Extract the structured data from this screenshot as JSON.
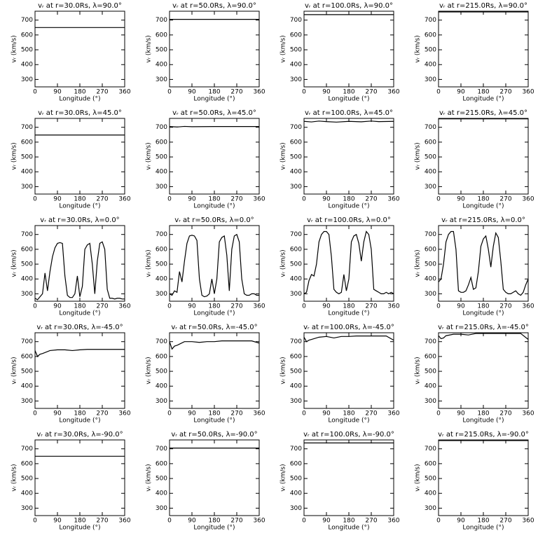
{
  "chart_data": [
    {
      "type": "line",
      "title": "vᵣ at r=30.0Rs, λ=90.0°",
      "x_label": "Longitude (°)",
      "y_label": "vᵣ (km/s)",
      "x": [
        0,
        360
      ],
      "values": [
        650,
        650
      ],
      "xlim": [
        0,
        360
      ],
      "ylim": [
        250,
        760
      ],
      "xticks": [
        0,
        90,
        180,
        270,
        360
      ],
      "yticks": [
        300,
        400,
        500,
        600,
        700
      ],
      "color": "#000000"
    },
    {
      "type": "line",
      "title": "vᵣ at r=50.0Rs, λ=90.0°",
      "x_label": "Longitude (°)",
      "y_label": "vᵣ (km/s)",
      "x": [
        0,
        360
      ],
      "values": [
        705,
        705
      ],
      "xlim": [
        0,
        360
      ],
      "ylim": [
        250,
        760
      ],
      "xticks": [
        0,
        90,
        180,
        270,
        360
      ],
      "yticks": [
        300,
        400,
        500,
        600,
        700
      ],
      "color": "#000000"
    },
    {
      "type": "line",
      "title": "vᵣ at r=100.0Rs, λ=90.0°",
      "x_label": "Longitude (°)",
      "y_label": "vᵣ (km/s)",
      "x": [
        0,
        360
      ],
      "values": [
        737,
        737
      ],
      "xlim": [
        0,
        360
      ],
      "ylim": [
        250,
        760
      ],
      "xticks": [
        0,
        90,
        180,
        270,
        360
      ],
      "yticks": [
        300,
        400,
        500,
        600,
        700
      ],
      "color": "#000000"
    },
    {
      "type": "line",
      "title": "vᵣ at r=215.0Rs, λ=90.0°",
      "x_label": "Longitude (°)",
      "y_label": "vᵣ (km/s)",
      "x": [
        0,
        360
      ],
      "values": [
        755,
        755
      ],
      "xlim": [
        0,
        360
      ],
      "ylim": [
        250,
        760
      ],
      "xticks": [
        0,
        90,
        180,
        270,
        360
      ],
      "yticks": [
        300,
        400,
        500,
        600,
        700
      ],
      "color": "#000000"
    },
    {
      "type": "line",
      "title": "vᵣ at r=30.0Rs, λ=45.0°",
      "x_label": "Longitude (°)",
      "y_label": "vᵣ (km/s)",
      "x": [
        0,
        360
      ],
      "values": [
        648,
        648
      ],
      "xlim": [
        0,
        360
      ],
      "ylim": [
        250,
        760
      ],
      "xticks": [
        0,
        90,
        180,
        270,
        360
      ],
      "yticks": [
        300,
        400,
        500,
        600,
        700
      ],
      "color": "#000000"
    },
    {
      "type": "line",
      "title": "vᵣ at r=50.0Rs, λ=45.0°",
      "x_label": "Longitude (°)",
      "y_label": "vᵣ (km/s)",
      "x": [
        0,
        30,
        60,
        90,
        180,
        270,
        360
      ],
      "values": [
        705,
        702,
        706,
        704,
        705,
        705,
        705
      ],
      "xlim": [
        0,
        360
      ],
      "ylim": [
        250,
        760
      ],
      "xticks": [
        0,
        90,
        180,
        270,
        360
      ],
      "yticks": [
        300,
        400,
        500,
        600,
        700
      ],
      "color": "#000000"
    },
    {
      "type": "line",
      "title": "vᵣ at r=100.0Rs, λ=45.0°",
      "x_label": "Longitude (°)",
      "y_label": "vᵣ (km/s)",
      "x": [
        0,
        30,
        60,
        90,
        130,
        180,
        230,
        270,
        300,
        360
      ],
      "values": [
        740,
        736,
        742,
        738,
        735,
        740,
        737,
        742,
        738,
        740
      ],
      "xlim": [
        0,
        360
      ],
      "ylim": [
        250,
        760
      ],
      "xticks": [
        0,
        90,
        180,
        270,
        360
      ],
      "yticks": [
        300,
        400,
        500,
        600,
        700
      ],
      "color": "#000000"
    },
    {
      "type": "line",
      "title": "vᵣ at r=215.0Rs, λ=45.0°",
      "x_label": "Longitude (°)",
      "y_label": "vᵣ (km/s)",
      "x": [
        0,
        360
      ],
      "values": [
        757,
        757
      ],
      "xlim": [
        0,
        360
      ],
      "ylim": [
        250,
        760
      ],
      "xticks": [
        0,
        90,
        180,
        270,
        360
      ],
      "yticks": [
        300,
        400,
        500,
        600,
        700
      ],
      "color": "#000000"
    },
    {
      "type": "line",
      "title": "vᵣ at r=30.0Rs, λ=0.0°",
      "x_label": "Longitude (°)",
      "y_label": "vᵣ (km/s)",
      "x": [
        0,
        10,
        20,
        30,
        40,
        50,
        60,
        70,
        80,
        90,
        100,
        110,
        120,
        130,
        140,
        150,
        160,
        170,
        180,
        190,
        200,
        210,
        220,
        230,
        240,
        250,
        260,
        270,
        280,
        290,
        300,
        310,
        320,
        330,
        340,
        350,
        360
      ],
      "values": [
        270,
        260,
        280,
        300,
        440,
        320,
        450,
        550,
        610,
        640,
        645,
        640,
        420,
        290,
        275,
        275,
        300,
        420,
        280,
        350,
        600,
        630,
        640,
        500,
        300,
        520,
        640,
        650,
        600,
        330,
        270,
        270,
        265,
        270,
        270,
        265,
        265
      ],
      "xlim": [
        0,
        360
      ],
      "ylim": [
        250,
        760
      ],
      "xticks": [
        0,
        90,
        180,
        270,
        360
      ],
      "yticks": [
        300,
        400,
        500,
        600,
        700
      ],
      "color": "#000000"
    },
    {
      "type": "line",
      "title": "vᵣ at r=50.0Rs, λ=0.0°",
      "x_label": "Longitude (°)",
      "y_label": "vᵣ (km/s)",
      "x": [
        0,
        10,
        20,
        30,
        40,
        50,
        60,
        70,
        80,
        90,
        100,
        110,
        120,
        130,
        140,
        150,
        160,
        170,
        180,
        190,
        200,
        210,
        220,
        230,
        240,
        250,
        260,
        270,
        280,
        290,
        300,
        310,
        320,
        330,
        340,
        350,
        360
      ],
      "values": [
        300,
        290,
        320,
        310,
        450,
        380,
        520,
        640,
        690,
        695,
        690,
        660,
        400,
        290,
        280,
        285,
        300,
        400,
        300,
        400,
        650,
        680,
        690,
        560,
        320,
        600,
        690,
        700,
        650,
        400,
        300,
        290,
        290,
        300,
        300,
        290,
        290
      ],
      "xlim": [
        0,
        360
      ],
      "ylim": [
        250,
        760
      ],
      "xticks": [
        0,
        90,
        180,
        270,
        360
      ],
      "yticks": [
        300,
        400,
        500,
        600,
        700
      ],
      "color": "#000000"
    },
    {
      "type": "line",
      "title": "vᵣ at r=100.0Rs, λ=0.0°",
      "x_label": "Longitude (°)",
      "y_label": "vᵣ (km/s)",
      "x": [
        0,
        10,
        20,
        30,
        40,
        50,
        60,
        70,
        80,
        90,
        100,
        110,
        120,
        130,
        140,
        150,
        160,
        170,
        180,
        190,
        200,
        210,
        220,
        230,
        240,
        250,
        260,
        270,
        280,
        290,
        300,
        310,
        320,
        330,
        340,
        350,
        360
      ],
      "values": [
        300,
        310,
        390,
        430,
        420,
        500,
        650,
        700,
        720,
        720,
        700,
        550,
        330,
        310,
        300,
        310,
        430,
        320,
        400,
        650,
        690,
        700,
        640,
        520,
        650,
        720,
        700,
        600,
        330,
        320,
        310,
        300,
        300,
        310,
        300,
        310,
        300
      ],
      "xlim": [
        0,
        360
      ],
      "ylim": [
        250,
        760
      ],
      "xticks": [
        0,
        90,
        180,
        270,
        360
      ],
      "yticks": [
        300,
        400,
        500,
        600,
        700
      ],
      "color": "#000000"
    },
    {
      "type": "line",
      "title": "vᵣ at r=215.0Rs, λ=0.0°",
      "x_label": "Longitude (°)",
      "y_label": "vᵣ (km/s)",
      "x": [
        0,
        10,
        20,
        30,
        40,
        50,
        60,
        70,
        80,
        90,
        100,
        110,
        120,
        130,
        140,
        150,
        160,
        170,
        180,
        190,
        200,
        210,
        220,
        230,
        240,
        250,
        260,
        270,
        280,
        290,
        300,
        310,
        320,
        330,
        340,
        350,
        360
      ],
      "values": [
        380,
        400,
        500,
        650,
        700,
        720,
        720,
        600,
        320,
        310,
        310,
        320,
        360,
        410,
        330,
        340,
        450,
        620,
        670,
        690,
        600,
        480,
        620,
        710,
        680,
        520,
        330,
        310,
        300,
        300,
        310,
        320,
        300,
        290,
        310,
        360,
        400
      ],
      "xlim": [
        0,
        360
      ],
      "ylim": [
        250,
        760
      ],
      "xticks": [
        0,
        90,
        180,
        270,
        360
      ],
      "yticks": [
        300,
        400,
        500,
        600,
        700
      ],
      "color": "#000000"
    },
    {
      "type": "line",
      "title": "vᵣ at r=30.0Rs, λ=-45.0°",
      "x_label": "Longitude (°)",
      "y_label": "vᵣ (km/s)",
      "x": [
        0,
        10,
        20,
        30,
        60,
        90,
        120,
        150,
        180,
        210,
        240,
        270,
        300,
        330,
        360
      ],
      "values": [
        640,
        600,
        615,
        620,
        640,
        645,
        645,
        640,
        645,
        648,
        648,
        648,
        648,
        648,
        648
      ],
      "xlim": [
        0,
        360
      ],
      "ylim": [
        250,
        760
      ],
      "xticks": [
        0,
        90,
        180,
        270,
        360
      ],
      "yticks": [
        300,
        400,
        500,
        600,
        700
      ],
      "color": "#000000"
    },
    {
      "type": "line",
      "title": "vᵣ at r=50.0Rs, λ=-45.0°",
      "x_label": "Longitude (°)",
      "y_label": "vᵣ (km/s)",
      "x": [
        0,
        10,
        20,
        30,
        60,
        90,
        120,
        150,
        180,
        210,
        240,
        270,
        300,
        330,
        360
      ],
      "values": [
        700,
        650,
        670,
        675,
        700,
        700,
        695,
        700,
        700,
        705,
        705,
        705,
        705,
        705,
        690
      ],
      "xlim": [
        0,
        360
      ],
      "ylim": [
        250,
        760
      ],
      "xticks": [
        0,
        90,
        180,
        270,
        360
      ],
      "yticks": [
        300,
        400,
        500,
        600,
        700
      ],
      "color": "#000000"
    },
    {
      "type": "line",
      "title": "vᵣ at r=100.0Rs, λ=-45.0°",
      "x_label": "Longitude (°)",
      "y_label": "vᵣ (km/s)",
      "x": [
        0,
        10,
        20,
        30,
        60,
        90,
        120,
        150,
        180,
        210,
        240,
        270,
        300,
        330,
        360
      ],
      "values": [
        730,
        700,
        710,
        715,
        730,
        735,
        725,
        735,
        735,
        738,
        738,
        738,
        738,
        738,
        710
      ],
      "xlim": [
        0,
        360
      ],
      "ylim": [
        250,
        760
      ],
      "xticks": [
        0,
        90,
        180,
        270,
        360
      ],
      "yticks": [
        300,
        400,
        500,
        600,
        700
      ],
      "color": "#000000"
    },
    {
      "type": "line",
      "title": "vᵣ at r=215.0Rs, λ=-45.0°",
      "x_label": "Longitude (°)",
      "y_label": "vᵣ (km/s)",
      "x": [
        0,
        10,
        20,
        30,
        60,
        90,
        120,
        150,
        180,
        210,
        240,
        270,
        300,
        330,
        360
      ],
      "values": [
        740,
        720,
        725,
        740,
        750,
        750,
        745,
        755,
        755,
        755,
        755,
        755,
        755,
        755,
        715
      ],
      "xlim": [
        0,
        360
      ],
      "ylim": [
        250,
        760
      ],
      "xticks": [
        0,
        90,
        180,
        270,
        360
      ],
      "yticks": [
        300,
        400,
        500,
        600,
        700
      ],
      "color": "#000000"
    },
    {
      "type": "line",
      "title": "vᵣ at r=30.0Rs, λ=-90.0°",
      "x_label": "Longitude (°)",
      "y_label": "vᵣ (km/s)",
      "x": [
        0,
        360
      ],
      "values": [
        650,
        650
      ],
      "xlim": [
        0,
        360
      ],
      "ylim": [
        250,
        760
      ],
      "xticks": [
        0,
        90,
        180,
        270,
        360
      ],
      "yticks": [
        300,
        400,
        500,
        600,
        700
      ],
      "color": "#000000"
    },
    {
      "type": "line",
      "title": "vᵣ at r=50.0Rs, λ=-90.0°",
      "x_label": "Longitude (°)",
      "y_label": "vᵣ (km/s)",
      "x": [
        0,
        360
      ],
      "values": [
        705,
        705
      ],
      "xlim": [
        0,
        360
      ],
      "ylim": [
        250,
        760
      ],
      "xticks": [
        0,
        90,
        180,
        270,
        360
      ],
      "yticks": [
        300,
        400,
        500,
        600,
        700
      ],
      "color": "#000000"
    },
    {
      "type": "line",
      "title": "vᵣ at r=100.0Rs, λ=-90.0°",
      "x_label": "Longitude (°)",
      "y_label": "vᵣ (km/s)",
      "x": [
        0,
        360
      ],
      "values": [
        740,
        740
      ],
      "xlim": [
        0,
        360
      ],
      "ylim": [
        250,
        760
      ],
      "xticks": [
        0,
        90,
        180,
        270,
        360
      ],
      "yticks": [
        300,
        400,
        500,
        600,
        700
      ],
      "color": "#000000"
    },
    {
      "type": "line",
      "title": "vᵣ at r=215.0Rs, λ=-90.0°",
      "x_label": "Longitude (°)",
      "y_label": "vᵣ (km/s)",
      "x": [
        0,
        360
      ],
      "values": [
        756,
        756
      ],
      "xlim": [
        0,
        360
      ],
      "ylim": [
        250,
        760
      ],
      "xticks": [
        0,
        90,
        180,
        270,
        360
      ],
      "yticks": [
        300,
        400,
        500,
        600,
        700
      ],
      "color": "#000000"
    }
  ]
}
